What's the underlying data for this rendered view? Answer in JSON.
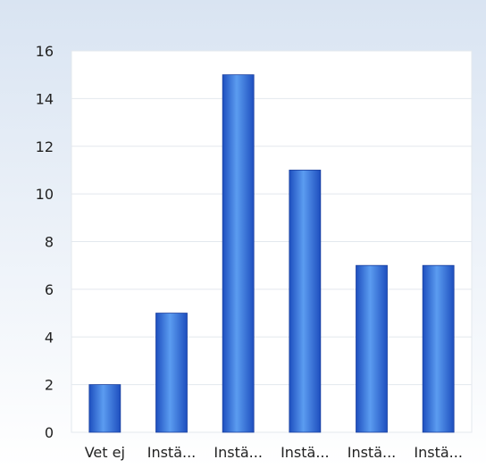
{
  "chart_data": {
    "type": "bar",
    "categories": [
      "Vet ej",
      "Instä...",
      "Instä...",
      "Instä...",
      "Instä...",
      "Instä..."
    ],
    "values": [
      2,
      5,
      15,
      11,
      7,
      7
    ],
    "title": "",
    "xlabel": "",
    "ylabel": "",
    "ylim": [
      0,
      16
    ],
    "yticks": [
      "0",
      "2",
      "4",
      "6",
      "8",
      "10",
      "12",
      "14",
      "16"
    ],
    "grid": true,
    "legend": "none"
  },
  "colors": {
    "bar_light": "#5b9cf0",
    "bar_dark": "#1e4fbf",
    "background_top": "#d9e4f2",
    "background_bottom": "#ffffff",
    "gridline": "#e3e8ee",
    "axis_text": "#222222"
  }
}
